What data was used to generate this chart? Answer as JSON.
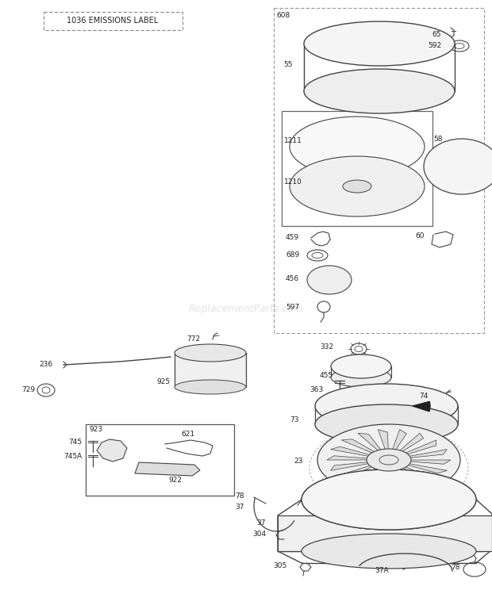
{
  "bg": "#ffffff",
  "lc": "#444444",
  "watermark": "ReplacementParts.com",
  "emissions_label": "1036 EMISSIONS LABEL"
}
